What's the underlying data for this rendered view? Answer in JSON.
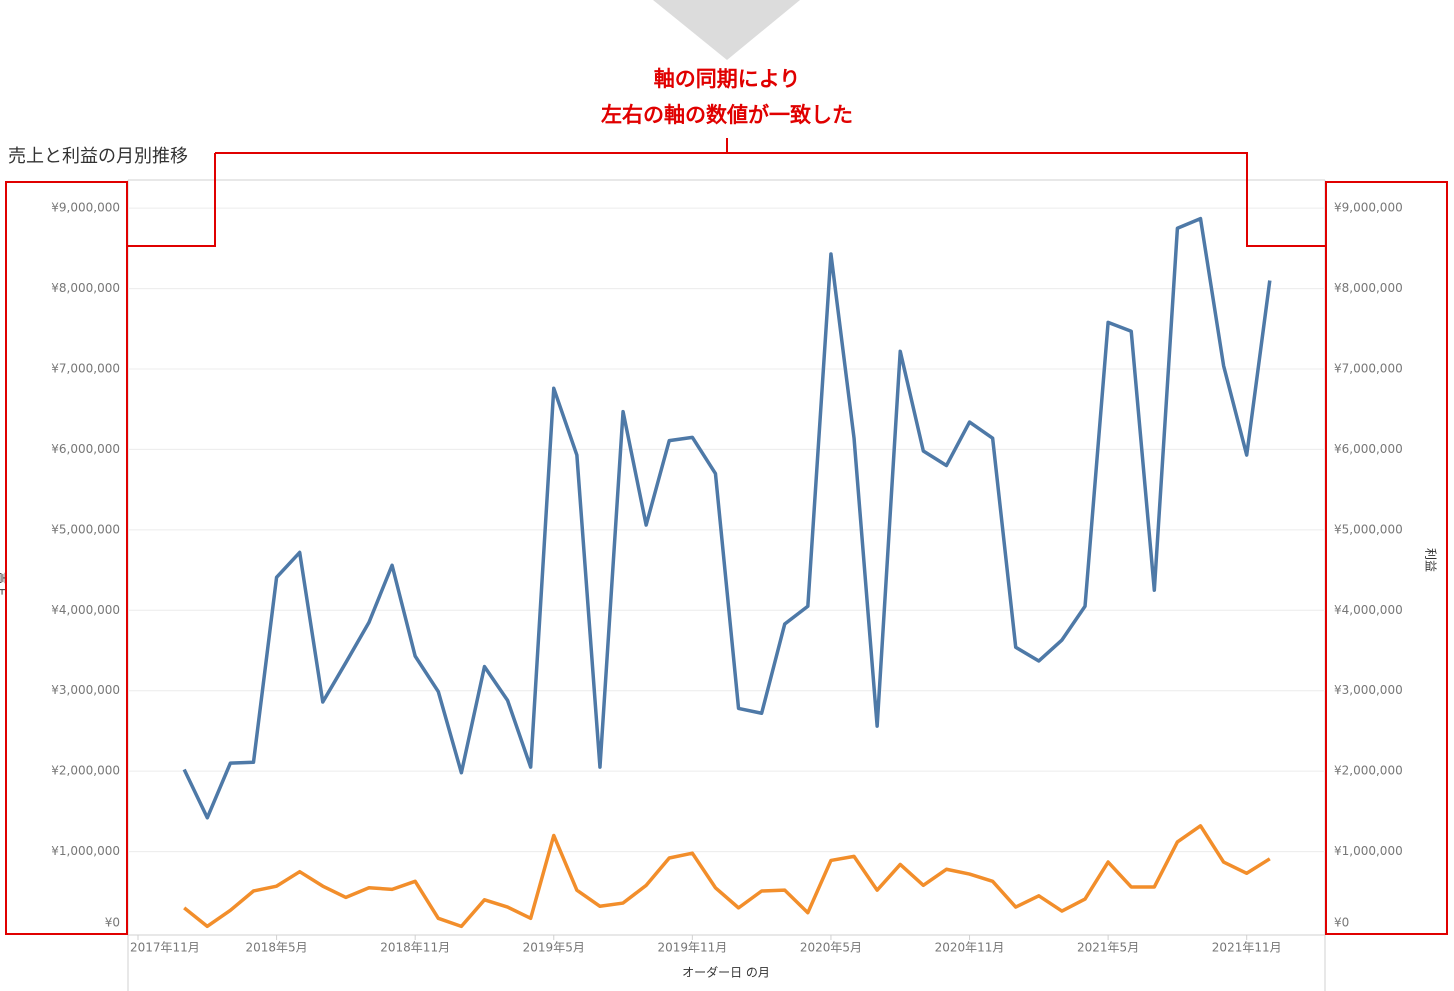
{
  "chart_data": {
    "type": "line",
    "title": "売上と利益の月別推移",
    "annotation": [
      "軸の同期により",
      "左右の軸の数値が一致した"
    ],
    "xlabel": "オーダー日 の月",
    "ylabel": "売上",
    "y2label": "利益",
    "x": [
      "2018-01",
      "2018-02",
      "2018-03",
      "2018-04",
      "2018-05",
      "2018-06",
      "2018-07",
      "2018-08",
      "2018-09",
      "2018-10",
      "2018-11",
      "2018-12",
      "2019-01",
      "2019-02",
      "2019-03",
      "2019-04",
      "2019-05",
      "2019-06",
      "2019-07",
      "2019-08",
      "2019-09",
      "2019-10",
      "2019-11",
      "2019-12",
      "2020-01",
      "2020-02",
      "2020-03",
      "2020-04",
      "2020-05",
      "2020-06",
      "2020-07",
      "2020-08",
      "2020-09",
      "2020-10",
      "2020-11",
      "2020-12",
      "2021-01",
      "2021-02",
      "2021-03",
      "2021-04",
      "2021-05",
      "2021-06",
      "2021-07",
      "2021-08",
      "2021-09",
      "2021-10",
      "2021-11",
      "2021-12"
    ],
    "series": [
      {
        "name": "売上",
        "color": "#4e79a7",
        "axis": "y",
        "values": [
          2020000,
          1420000,
          2100000,
          2110000,
          4410000,
          4720000,
          2860000,
          3350000,
          3850000,
          4560000,
          3430000,
          2990000,
          1980000,
          3300000,
          2880000,
          2050000,
          6760000,
          5930000,
          2050000,
          6470000,
          5060000,
          6110000,
          6150000,
          5700000,
          2780000,
          2720000,
          3830000,
          4050000,
          8430000,
          6140000,
          2560000,
          7220000,
          5980000,
          5800000,
          6340000,
          6140000,
          3540000,
          3370000,
          3630000,
          4050000,
          7580000,
          7470000,
          4250000,
          8750000,
          8870000,
          7040000,
          5930000,
          8100000
        ]
      },
      {
        "name": "利益",
        "color": "#f28e2b",
        "axis": "y2",
        "values": [
          300000,
          70000,
          270000,
          510000,
          570000,
          750000,
          570000,
          430000,
          550000,
          530000,
          630000,
          170000,
          70000,
          400000,
          310000,
          170000,
          1200000,
          520000,
          320000,
          360000,
          580000,
          920000,
          980000,
          550000,
          300000,
          510000,
          520000,
          240000,
          890000,
          940000,
          520000,
          840000,
          580000,
          780000,
          720000,
          630000,
          310000,
          450000,
          260000,
          410000,
          870000,
          560000,
          560000,
          1120000,
          1320000,
          870000,
          730000,
          910000
        ]
      }
    ],
    "xlim": [
      "2017-11",
      "2022-02"
    ],
    "xticks": [
      {
        "value": "2017-11",
        "label": "2017年11月"
      },
      {
        "value": "2018-05",
        "label": "2018年5月"
      },
      {
        "value": "2018-11",
        "label": "2018年11月"
      },
      {
        "value": "2019-05",
        "label": "2019年5月"
      },
      {
        "value": "2019-11",
        "label": "2019年11月"
      },
      {
        "value": "2020-05",
        "label": "2020年5月"
      },
      {
        "value": "2020-11",
        "label": "2020年11月"
      },
      {
        "value": "2021-05",
        "label": "2021年5月"
      },
      {
        "value": "2021-11",
        "label": "2021年11月"
      }
    ],
    "ylim": [
      0,
      9350000
    ],
    "yticks": [
      {
        "value": 0,
        "label": "¥0"
      },
      {
        "value": 1000000,
        "label": "¥1,000,000"
      },
      {
        "value": 2000000,
        "label": "¥2,000,000"
      },
      {
        "value": 3000000,
        "label": "¥3,000,000"
      },
      {
        "value": 4000000,
        "label": "¥4,000,000"
      },
      {
        "value": 5000000,
        "label": "¥5,000,000"
      },
      {
        "value": 6000000,
        "label": "¥6,000,000"
      },
      {
        "value": 7000000,
        "label": "¥7,000,000"
      },
      {
        "value": 8000000,
        "label": "¥8,000,000"
      },
      {
        "value": 9000000,
        "label": "¥9,000,000"
      }
    ],
    "y2lim": [
      0,
      9350000
    ],
    "y2ticks": [
      {
        "value": 0,
        "label": "¥0"
      },
      {
        "value": 1000000,
        "label": "¥1,000,000"
      },
      {
        "value": 2000000,
        "label": "¥2,000,000"
      },
      {
        "value": 3000000,
        "label": "¥3,000,000"
      },
      {
        "value": 4000000,
        "label": "¥4,000,000"
      },
      {
        "value": 5000000,
        "label": "¥5,000,000"
      },
      {
        "value": 6000000,
        "label": "¥6,000,000"
      },
      {
        "value": 7000000,
        "label": "¥7,000,000"
      },
      {
        "value": 8000000,
        "label": "¥8,000,000"
      },
      {
        "value": 9000000,
        "label": "¥9,000,000"
      }
    ],
    "grid": true
  }
}
